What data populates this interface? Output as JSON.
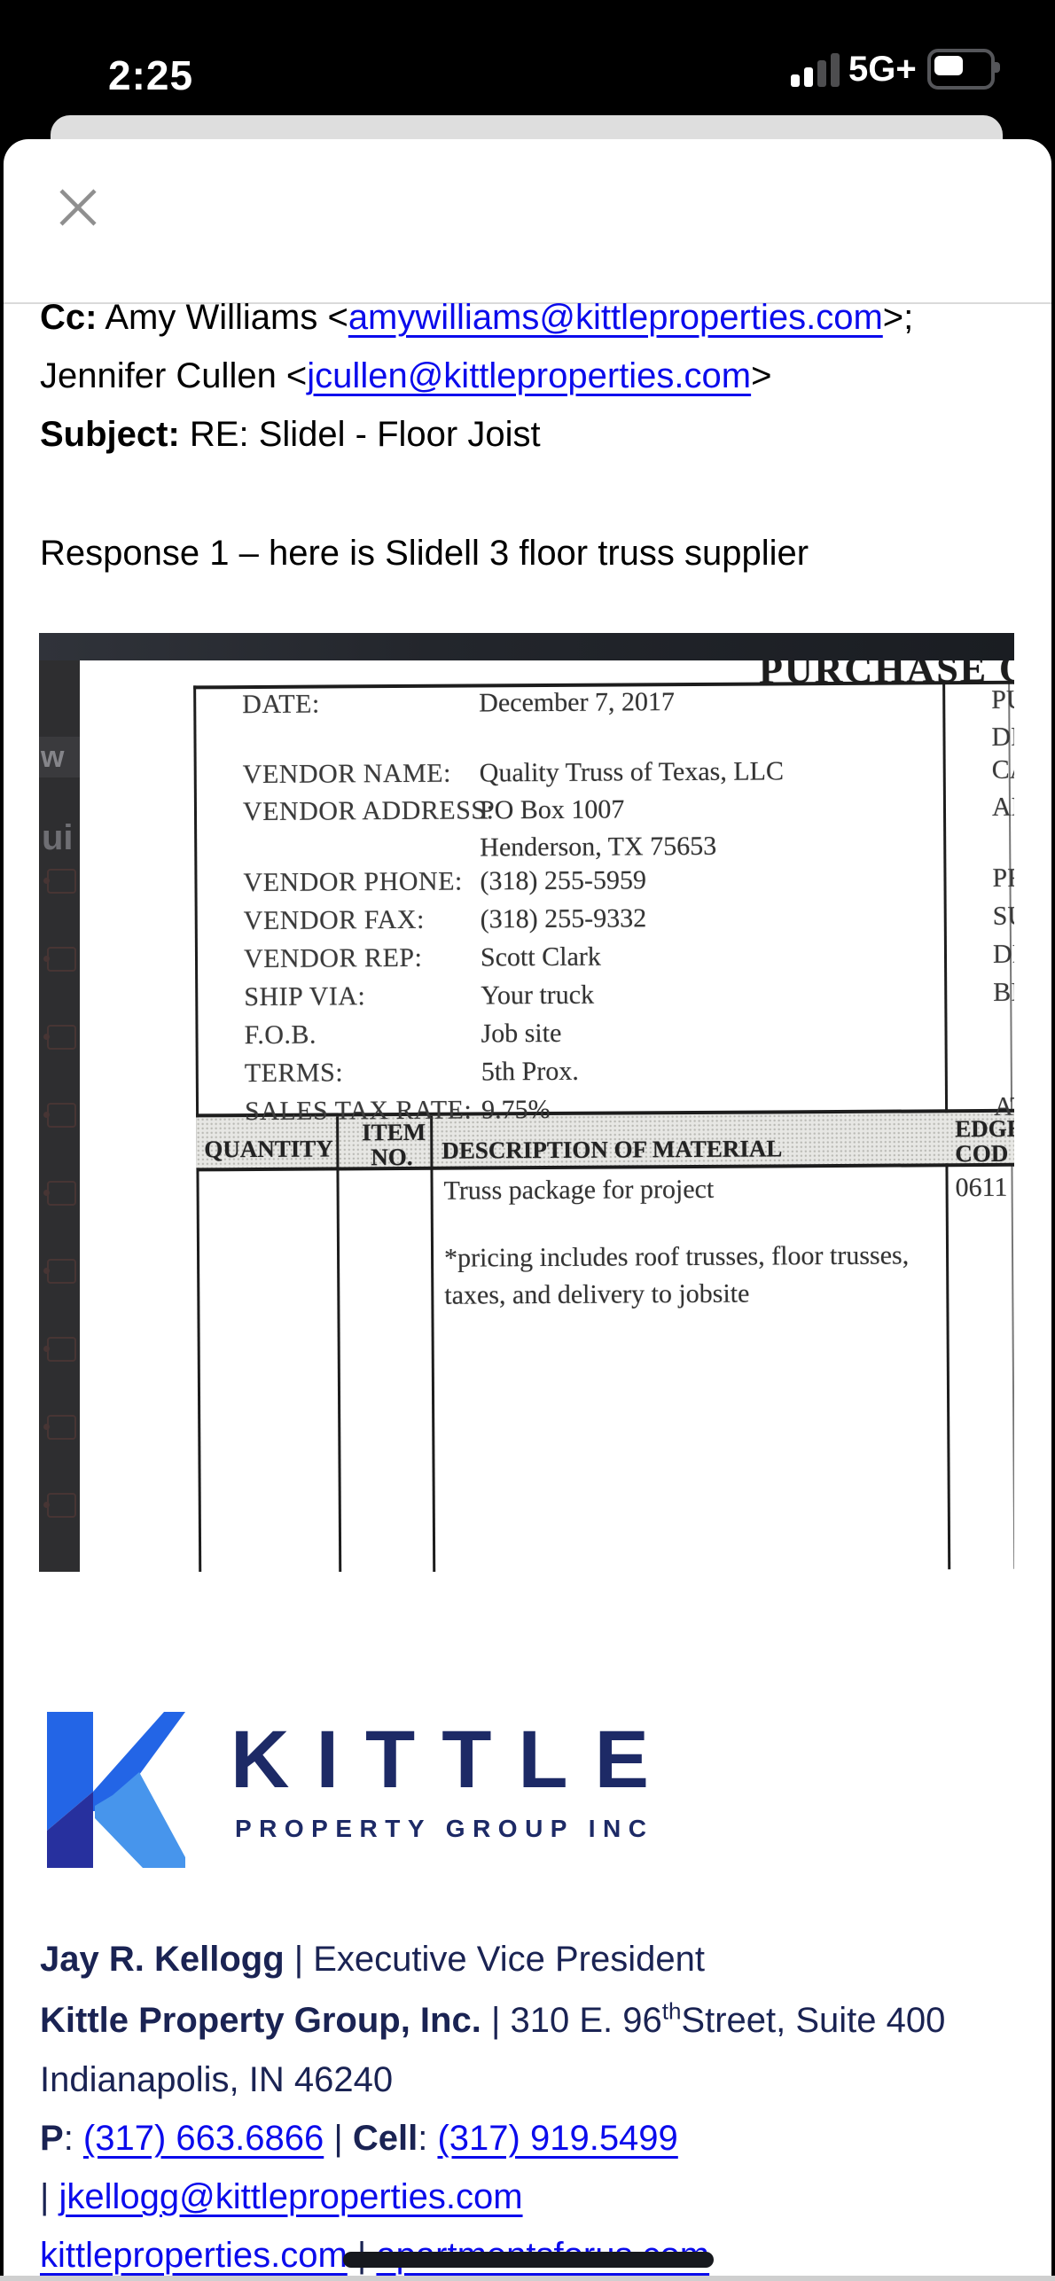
{
  "status_bar": {
    "time": "2:25",
    "network": "5G+"
  },
  "email": {
    "cc_label": "Cc:",
    "cc_line1_pre": " Amy Williams <",
    "cc_link1": "amywilliams@kittleproperties.com",
    "cc_line1_post": ">;",
    "cc_line2_pre": "Jennifer Cullen <",
    "cc_link2": "jcullen@kittleproperties.com",
    "cc_line2_post": ">",
    "subject_label": "Subject:",
    "subject_value": " RE: Slidel - Floor Joist",
    "body_text": "Response 1 – here is Slidell 3 floor truss supplier"
  },
  "purchase_order": {
    "title": "PURCHASE OR",
    "sidebar_hint_top": "w",
    "sidebar_hint_mid": "ui",
    "fields": [
      {
        "label": "DATE:",
        "value": "December 7, 2017"
      },
      {
        "label": "VENDOR NAME:",
        "value": "Quality Truss of Texas, LLC"
      },
      {
        "label": "VENDOR ADDRESS:",
        "value": "PO Box 1007"
      },
      {
        "label": "",
        "value": "Henderson, TX 75653"
      },
      {
        "label": "VENDOR PHONE:",
        "value": "(318) 255-5959"
      },
      {
        "label": "VENDOR FAX:",
        "value": "(318) 255-9332"
      },
      {
        "label": "VENDOR REP:",
        "value": "Scott Clark"
      },
      {
        "label": "SHIP VIA:",
        "value": "Your truck"
      },
      {
        "label": "F.O.B.",
        "value": "Job site"
      },
      {
        "label": "TERMS:",
        "value": "5th Prox."
      },
      {
        "label": "SALES TAX RATE:",
        "value": "9.75%"
      }
    ],
    "right_column_rows": [
      "PURC",
      "DELIV",
      "CARE",
      "ADDR",
      "PROJI",
      "SUPE",
      "DELIV",
      "BILLI",
      "ATTEN"
    ],
    "table_headers": {
      "quantity": "QUANTITY",
      "item_line1": "ITEM",
      "item_line2": "NO.",
      "description": "DESCRIPTION OF MATERIAL",
      "code_line1": "EDGE",
      "code_line2": "COD"
    },
    "body_rows": {
      "description_line1": "Truss package for project",
      "code_value": "0611",
      "note_line1": "*pricing includes roof trusses, floor trusses,",
      "note_line2": "taxes, and delivery to jobsite"
    }
  },
  "logo": {
    "brand": "KITTLE",
    "tagline": "PROPERTY GROUP INC"
  },
  "signature": {
    "name": "Jay R. Kellogg",
    "sep1": " | ",
    "job_title": "Executive Vice President",
    "company": "Kittle Property Group, Inc.",
    "sep2": " | ",
    "address_pre": "310 E. 96",
    "address_sup": "th",
    "address_post": "Street, Suite 400",
    "city": "Indianapolis, IN 46240",
    "phone_label": "P",
    "colon1": ": ",
    "phone": "(317) 663.6866",
    "sep3": " | ",
    "cell_label": "Cell",
    "colon2": ": ",
    "cell": "(317) 919.5499",
    "email_prefix": "| ",
    "email": "jkellogg@kittleproperties.com",
    "site1": "kittleproperties.com",
    "sep4": " | ",
    "site2": "apartmentsforus.com"
  },
  "colors": {
    "link_blue": "#0b0bec",
    "signature_navy": "#1a2353",
    "logo_navy": "#1d2a66",
    "logo_blue": "#2365e6",
    "logo_dark_blue": "#27309e",
    "logo_light_blue": "#4795ec"
  }
}
